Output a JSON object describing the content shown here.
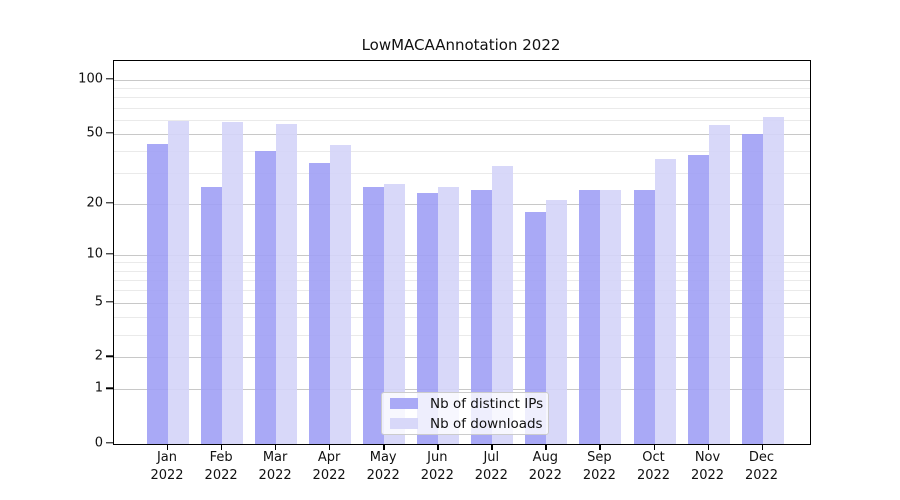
{
  "title": "LowMACAAnnotation 2022",
  "colors": {
    "distinct_ips": "rgba(160,160,245,0.9)",
    "downloads": "rgba(212,212,248,0.9)",
    "grid_major": "#c8c8c8",
    "grid_minor": "#eaeaea",
    "axis_frame": "#000000"
  },
  "legend": {
    "items": [
      {
        "label": "Nb of distinct IPs",
        "series_key": "distinct_ips"
      },
      {
        "label": "Nb of downloads",
        "series_key": "downloads"
      }
    ]
  },
  "y_axis": {
    "tick_labels": [
      "100",
      "50",
      "20",
      "10",
      "5",
      "2",
      "1",
      "0"
    ],
    "tick_values": [
      100,
      50,
      20,
      10,
      5,
      2,
      1,
      0
    ],
    "major_gridline_values": [
      1,
      2,
      5,
      10,
      20,
      50,
      100
    ],
    "minor_gridline_values": [
      3,
      4,
      6,
      7,
      8,
      9,
      30,
      40,
      60,
      70,
      80,
      90
    ]
  },
  "chart_data": {
    "type": "bar",
    "title": "LowMACAAnnotation 2022",
    "categories": [
      "Jan 2022",
      "Feb 2022",
      "Mar 2022",
      "Apr 2022",
      "May 2022",
      "Jun 2022",
      "Jul 2022",
      "Aug 2022",
      "Sep 2022",
      "Oct 2022",
      "Nov 2022",
      "Dec 2022"
    ],
    "series": [
      {
        "name": "Nb of distinct IPs",
        "values": [
          44,
          25,
          40,
          34,
          25,
          23,
          24,
          18,
          24,
          24,
          38,
          50
        ]
      },
      {
        "name": "Nb of downloads",
        "values": [
          59,
          58,
          57,
          43,
          26,
          25,
          33,
          21,
          24,
          36,
          56,
          62
        ]
      }
    ],
    "xlabel": "",
    "ylabel": "",
    "yscale": "log10(value+1)",
    "ylim": [
      0,
      127
    ],
    "grid": true,
    "legend_position": "inside lower-center"
  }
}
